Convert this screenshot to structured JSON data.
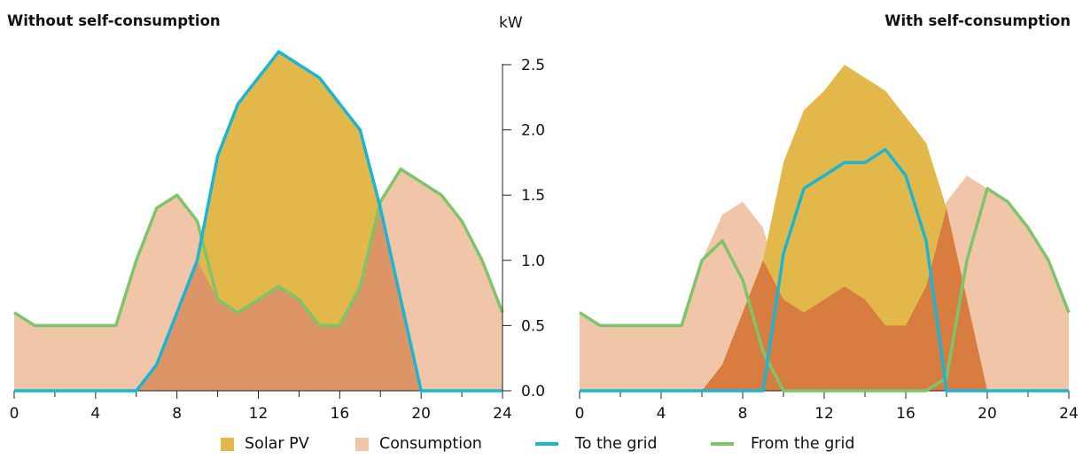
{
  "titles": {
    "left": "Without self-consumption",
    "right": "With self-consumption",
    "unit": "kW"
  },
  "colors": {
    "solar": "#E3B84B",
    "consumption": "#F0C5A8",
    "overlap": "#DD9466",
    "self_consumed": "#D97C40",
    "to_grid": "#1BB5D4",
    "from_grid": "#7DC569",
    "axis": "#222222"
  },
  "legend": [
    {
      "label": "Solar PV",
      "kind": "box",
      "color": "#E3B84B"
    },
    {
      "label": "Consumption",
      "kind": "box",
      "color": "#F0C5A8"
    },
    {
      "label": "To the grid",
      "kind": "line",
      "color": "#1BB5D4"
    },
    {
      "label": "From the grid",
      "kind": "line",
      "color": "#7DC569"
    }
  ],
  "chart_data": [
    {
      "type": "area",
      "title": "Without self-consumption",
      "ylabel": "kW",
      "x": [
        0,
        1,
        2,
        3,
        4,
        5,
        6,
        7,
        8,
        9,
        10,
        11,
        12,
        13,
        14,
        15,
        16,
        17,
        18,
        19,
        20,
        21,
        22,
        23,
        24
      ],
      "xticks": [
        0,
        4,
        8,
        12,
        16,
        20,
        24
      ],
      "ylim": [
        0,
        2.5
      ],
      "yticks": [
        "0.0",
        "0.5",
        "1.0",
        "1.5",
        "2.0",
        "2.5"
      ],
      "series": [
        {
          "name": "Solar PV",
          "values": [
            0,
            0,
            0,
            0,
            0,
            0,
            0,
            0.2,
            0.6,
            1.0,
            1.8,
            2.2,
            2.4,
            2.6,
            2.5,
            2.4,
            2.2,
            2.0,
            1.4,
            0.7,
            0,
            0,
            0,
            0,
            0
          ]
        },
        {
          "name": "Consumption",
          "values": [
            0.6,
            0.5,
            0.5,
            0.5,
            0.5,
            0.5,
            1.0,
            1.4,
            1.5,
            1.3,
            0.7,
            0.6,
            0.7,
            0.8,
            0.7,
            0.5,
            0.5,
            0.8,
            1.45,
            1.7,
            1.6,
            1.5,
            1.3,
            1.0,
            0.6
          ]
        },
        {
          "name": "To the grid",
          "values": [
            0,
            0,
            0,
            0,
            0,
            0,
            0,
            0.2,
            0.6,
            1.0,
            1.8,
            2.2,
            2.4,
            2.6,
            2.5,
            2.4,
            2.2,
            2.0,
            1.4,
            0.7,
            0,
            0,
            0,
            0,
            0
          ]
        },
        {
          "name": "From the grid",
          "values": [
            0.6,
            0.5,
            0.5,
            0.5,
            0.5,
            0.5,
            1.0,
            1.4,
            1.5,
            1.3,
            0.7,
            0.6,
            0.7,
            0.8,
            0.7,
            0.5,
            0.5,
            0.8,
            1.45,
            1.7,
            1.6,
            1.5,
            1.3,
            1.0,
            0.6
          ]
        }
      ]
    },
    {
      "type": "area",
      "title": "With self-consumption",
      "ylabel": "kW",
      "x": [
        0,
        1,
        2,
        3,
        4,
        5,
        6,
        7,
        8,
        9,
        10,
        11,
        12,
        13,
        14,
        15,
        16,
        17,
        18,
        19,
        20,
        21,
        22,
        23,
        24
      ],
      "xticks": [
        0,
        4,
        8,
        12,
        16,
        20,
        24
      ],
      "ylim": [
        0,
        2.5
      ],
      "yticks": [
        "0.0",
        "0.5",
        "1.0",
        "1.5",
        "2.0",
        "2.5"
      ],
      "series": [
        {
          "name": "Solar PV",
          "values": [
            0,
            0,
            0,
            0,
            0,
            0,
            0,
            0.2,
            0.6,
            1.0,
            1.75,
            2.15,
            2.3,
            2.5,
            2.4,
            2.3,
            2.1,
            1.9,
            1.4,
            0.7,
            0,
            0,
            0,
            0,
            0
          ]
        },
        {
          "name": "Consumption",
          "values": [
            0.6,
            0.5,
            0.5,
            0.5,
            0.5,
            0.5,
            1.0,
            1.35,
            1.45,
            1.25,
            0.7,
            0.6,
            0.7,
            0.8,
            0.7,
            0.5,
            0.5,
            0.8,
            1.45,
            1.65,
            1.55,
            1.45,
            1.25,
            1.0,
            0.6
          ]
        },
        {
          "name": "To the grid",
          "values": [
            0,
            0,
            0,
            0,
            0,
            0,
            0,
            0,
            0,
            0,
            1.05,
            1.55,
            1.65,
            1.75,
            1.75,
            1.85,
            1.65,
            1.15,
            0,
            0,
            0,
            0,
            0,
            0,
            0
          ]
        },
        {
          "name": "From the grid",
          "values": [
            0.6,
            0.5,
            0.5,
            0.5,
            0.5,
            0.5,
            1.0,
            1.15,
            0.85,
            0.3,
            0,
            0,
            0,
            0,
            0,
            0,
            0,
            0,
            0.1,
            1.0,
            1.55,
            1.45,
            1.25,
            1.0,
            0.6
          ]
        }
      ]
    }
  ]
}
